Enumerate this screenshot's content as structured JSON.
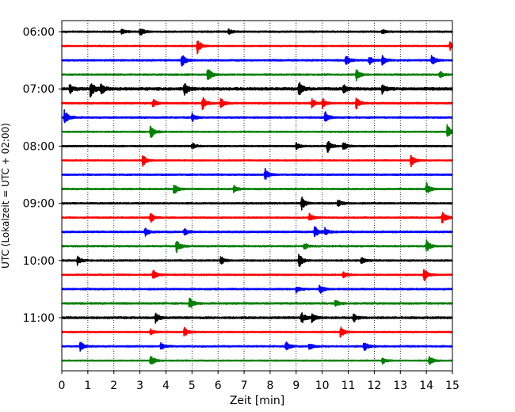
{
  "chart_data": {
    "type": "line",
    "title": "",
    "xlabel": "Zeit  [min]",
    "ylabel": "UTC (Lokalzeit = UTC + 02:00)",
    "xlim": [
      0,
      15
    ],
    "x_ticks": [
      0,
      1,
      2,
      3,
      4,
      5,
      6,
      7,
      8,
      9,
      10,
      11,
      12,
      13,
      14,
      15
    ],
    "x_tick_labels": [
      "0",
      "1",
      "2",
      "3",
      "4",
      "5",
      "6",
      "7",
      "8",
      "9",
      "10",
      "11",
      "12",
      "13",
      "14",
      "15"
    ],
    "y_tick_labels": [
      "06:00",
      "07:00",
      "08:00",
      "09:00",
      "10:00",
      "11:00"
    ],
    "y_tick_rows": [
      0,
      4,
      8,
      12,
      16,
      20
    ],
    "vertical_grid": true,
    "grid_style": "dotted",
    "row_colors": [
      "#000000",
      "#ff0000",
      "#0000ff",
      "#008000"
    ],
    "traces": [
      {
        "start": "06:00",
        "amplitude": 0.18,
        "events": [
          [
            2.3,
            0.35
          ],
          [
            3.0,
            0.5
          ],
          [
            6.4,
            0.3
          ],
          [
            12.3,
            0.25
          ]
        ]
      },
      {
        "start": "06:15",
        "amplitude": 0.15,
        "events": [
          [
            5.2,
            0.9
          ],
          [
            14.9,
            0.5
          ]
        ]
      },
      {
        "start": "06:30",
        "amplitude": 0.2,
        "events": [
          [
            4.6,
            0.8
          ],
          [
            10.9,
            0.6
          ],
          [
            11.8,
            0.5
          ],
          [
            12.3,
            0.6
          ],
          [
            14.2,
            0.6
          ]
        ]
      },
      {
        "start": "06:45",
        "amplitude": 0.2,
        "events": [
          [
            5.6,
            0.9
          ],
          [
            11.3,
            0.7
          ],
          [
            14.5,
            0.4
          ]
        ]
      },
      {
        "start": "07:00",
        "amplitude": 0.35,
        "events": [
          [
            0.3,
            0.5
          ],
          [
            1.1,
            1.0
          ],
          [
            1.5,
            0.6
          ],
          [
            4.7,
            0.7
          ],
          [
            9.1,
            0.9
          ],
          [
            10.8,
            0.5
          ],
          [
            12.3,
            0.5
          ]
        ]
      },
      {
        "start": "07:15",
        "amplitude": 0.2,
        "events": [
          [
            3.5,
            0.5
          ],
          [
            5.4,
            0.8
          ],
          [
            6.1,
            0.6
          ],
          [
            9.6,
            0.5
          ],
          [
            10.0,
            0.6
          ],
          [
            11.3,
            0.7
          ]
        ]
      },
      {
        "start": "07:30",
        "amplitude": 0.2,
        "events": [
          [
            0.1,
            0.9
          ],
          [
            5.0,
            0.5
          ],
          [
            10.1,
            0.7
          ]
        ]
      },
      {
        "start": "07:45",
        "amplitude": 0.15,
        "events": [
          [
            3.4,
            0.9
          ],
          [
            14.8,
            0.9
          ]
        ]
      },
      {
        "start": "08:00",
        "amplitude": 0.18,
        "events": [
          [
            5.0,
            0.4
          ],
          [
            9.0,
            0.4
          ],
          [
            10.2,
            0.8
          ],
          [
            10.8,
            0.5
          ]
        ]
      },
      {
        "start": "08:15",
        "amplitude": 0.15,
        "events": [
          [
            3.1,
            0.7
          ],
          [
            13.4,
            0.8
          ]
        ]
      },
      {
        "start": "08:30",
        "amplitude": 0.18,
        "events": [
          [
            7.8,
            0.7
          ]
        ]
      },
      {
        "start": "08:45",
        "amplitude": 0.18,
        "events": [
          [
            4.3,
            0.7
          ],
          [
            6.6,
            0.4
          ],
          [
            14.0,
            0.7
          ]
        ]
      },
      {
        "start": "09:00",
        "amplitude": 0.2,
        "events": [
          [
            9.2,
            0.8
          ],
          [
            10.6,
            0.4
          ]
        ]
      },
      {
        "start": "09:15",
        "amplitude": 0.18,
        "events": [
          [
            3.4,
            0.6
          ],
          [
            9.5,
            0.5
          ],
          [
            14.6,
            0.8
          ]
        ]
      },
      {
        "start": "09:30",
        "amplitude": 0.22,
        "events": [
          [
            3.2,
            0.5
          ],
          [
            4.7,
            0.4
          ],
          [
            9.7,
            0.7
          ],
          [
            10.1,
            0.4
          ]
        ]
      },
      {
        "start": "09:45",
        "amplitude": 0.2,
        "events": [
          [
            4.4,
            0.8
          ],
          [
            9.3,
            0.4
          ],
          [
            14.0,
            0.7
          ]
        ]
      },
      {
        "start": "10:00",
        "amplitude": 0.2,
        "events": [
          [
            0.6,
            0.5
          ],
          [
            6.1,
            0.5
          ],
          [
            9.1,
            0.8
          ],
          [
            11.5,
            0.4
          ]
        ]
      },
      {
        "start": "10:15",
        "amplitude": 0.18,
        "events": [
          [
            3.5,
            0.6
          ],
          [
            10.8,
            0.4
          ],
          [
            13.9,
            0.8
          ]
        ]
      },
      {
        "start": "10:30",
        "amplitude": 0.2,
        "events": [
          [
            9.0,
            0.4
          ],
          [
            9.9,
            0.6
          ]
        ]
      },
      {
        "start": "10:45",
        "amplitude": 0.22,
        "events": [
          [
            4.9,
            0.7
          ],
          [
            10.5,
            0.4
          ]
        ]
      },
      {
        "start": "11:00",
        "amplitude": 0.25,
        "events": [
          [
            3.6,
            0.6
          ],
          [
            9.2,
            0.8
          ],
          [
            9.6,
            0.5
          ],
          [
            11.2,
            0.5
          ]
        ]
      },
      {
        "start": "11:15",
        "amplitude": 0.15,
        "events": [
          [
            3.4,
            0.4
          ],
          [
            4.7,
            0.6
          ],
          [
            10.7,
            0.7
          ]
        ]
      },
      {
        "start": "11:30",
        "amplitude": 0.2,
        "events": [
          [
            0.7,
            0.6
          ],
          [
            3.8,
            0.4
          ],
          [
            8.6,
            0.6
          ],
          [
            9.5,
            0.4
          ],
          [
            11.6,
            0.6
          ]
        ]
      },
      {
        "start": "11:45",
        "amplitude": 0.15,
        "events": [
          [
            3.4,
            0.7
          ],
          [
            12.3,
            0.4
          ],
          [
            14.1,
            0.6
          ]
        ]
      }
    ]
  }
}
